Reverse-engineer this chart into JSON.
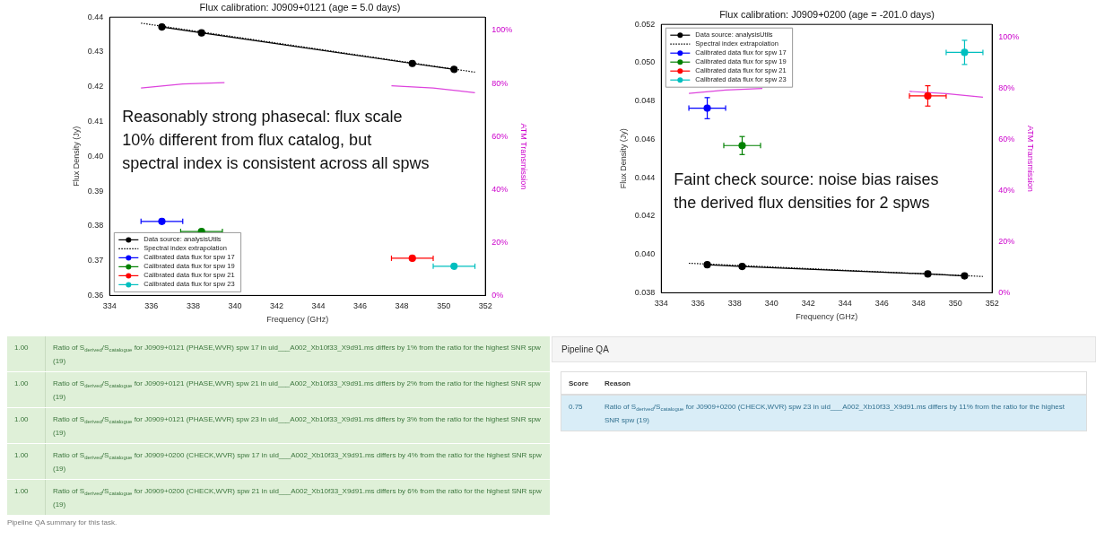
{
  "chart_data": [
    {
      "type": "line",
      "title": "Flux calibration: J0909+0121 (age = 5.0 days)",
      "xlabel": "Frequency (GHz)",
      "ylabel": "Flux Density (Jy)",
      "y2label": "ATM Transmission",
      "xlim": [
        334,
        352
      ],
      "xticks": [
        334,
        336,
        338,
        340,
        342,
        344,
        346,
        348,
        350,
        352
      ],
      "ylim": [
        0.36,
        0.44
      ],
      "yticks": [
        0.36,
        0.37,
        0.38,
        0.39,
        {
          "value": 0.4,
          "label": "0.40"
        },
        0.41,
        0.42,
        0.43,
        0.44
      ],
      "y2lim": [
        0,
        105
      ],
      "y2ticks": [
        {
          "value": 0,
          "label": "0%"
        },
        {
          "value": 20,
          "label": "20%"
        },
        {
          "value": 40,
          "label": "40%"
        },
        {
          "value": 60,
          "label": "60%"
        },
        {
          "value": 80,
          "label": "80%"
        },
        {
          "value": 100,
          "label": "100%"
        }
      ],
      "legend": "bottom left",
      "annotations": [
        "Reasonably strong phasecal: flux scale\n10% different from flux catalog, but\nspectral index is consistent across all spws"
      ],
      "series": [
        {
          "name": "Data source: analysisUtils",
          "type": "line",
          "color": "#000000",
          "marker": "circle",
          "x": [
            336.5,
            338.4,
            348.5,
            350.5
          ],
          "values": [
            0.4372,
            0.4355,
            0.4267,
            0.425
          ]
        },
        {
          "name": "Spectral index extrapolation",
          "type": "line",
          "color": "#000000",
          "marker": "none",
          "line_style": "dotted",
          "x": [
            335.5,
            351.5
          ],
          "values": [
            0.4383,
            0.4242
          ]
        },
        {
          "name": "Calibrated data flux for spw 17",
          "type": "scatter",
          "color": "#0000ff",
          "marker": "circle",
          "x": [
            336.5
          ],
          "values": [
            0.3813
          ],
          "xerrors": [
            1
          ]
        },
        {
          "name": "Calibrated data flux for spw 19",
          "type": "scatter",
          "color": "#008000",
          "marker": "circle",
          "x": [
            338.4
          ],
          "values": [
            0.3784
          ],
          "xerrors": [
            1
          ]
        },
        {
          "name": "Calibrated data flux for spw 21",
          "type": "scatter",
          "color": "#ff0000",
          "marker": "circle",
          "x": [
            348.5
          ],
          "values": [
            0.3707
          ],
          "xerrors": [
            1
          ]
        },
        {
          "name": "Calibrated data flux for spw 23",
          "type": "scatter",
          "color": "#00bfbf",
          "marker": "circle",
          "x": [
            350.5
          ],
          "values": [
            0.3684
          ],
          "xerrors": [
            1
          ]
        },
        {
          "type": "line",
          "axis": "y2",
          "color": "#dd44dd",
          "marker": "none",
          "x": [
            335.5,
            337.5,
            339.5,
            343.5,
            347.5,
            349.5,
            351.5
          ],
          "values": [
            78.3,
            79.8,
            80.3,
            null,
            79.1,
            78.3,
            76.5
          ]
        }
      ]
    },
    {
      "type": "line",
      "title": "Flux calibration: J0909+0200 (age = -201.0 days)",
      "xlabel": "Frequency (GHz)",
      "ylabel": "Flux Density (Jy)",
      "y2label": "ATM Transmission",
      "xlim": [
        334,
        352
      ],
      "xticks": [
        334,
        336,
        338,
        340,
        342,
        344,
        346,
        348,
        350,
        352
      ],
      "ylim": [
        0.038,
        0.052
      ],
      "yticks": [
        0.038,
        {
          "value": 0.04,
          "label": "0.040"
        },
        0.042,
        0.044,
        0.046,
        0.048,
        {
          "value": 0.05,
          "label": "0.050"
        },
        0.052
      ],
      "y2lim": [
        0,
        105
      ],
      "y2ticks": [
        {
          "value": 0,
          "label": "0%"
        },
        {
          "value": 20,
          "label": "20%"
        },
        {
          "value": 40,
          "label": "40%"
        },
        {
          "value": 60,
          "label": "60%"
        },
        {
          "value": 80,
          "label": "80%"
        },
        {
          "value": 100,
          "label": "100%"
        }
      ],
      "legend": "top left",
      "annotations": [
        "Faint check source: noise bias raises\nthe derived flux densities for 2 spws"
      ],
      "series": [
        {
          "name": "Data source: analysisUtils",
          "type": "line",
          "color": "#000000",
          "marker": "circle",
          "x": [
            336.5,
            338.4,
            348.5,
            350.5
          ],
          "values": [
            0.03946,
            0.03937,
            0.03898,
            0.03888
          ]
        },
        {
          "name": "Spectral index extrapolation",
          "type": "line",
          "color": "#000000",
          "marker": "none",
          "line_style": "dotted",
          "x": [
            335.5,
            351.5
          ],
          "values": [
            0.03954,
            0.03885
          ]
        },
        {
          "name": "Calibrated data flux for spw 17",
          "type": "scatter",
          "color": "#0000ff",
          "marker": "circle",
          "x": [
            336.5
          ],
          "values": [
            0.04763
          ],
          "errors": [
            0.00055
          ],
          "xerrors": [
            1
          ]
        },
        {
          "name": "Calibrated data flux for spw 19",
          "type": "scatter",
          "color": "#008000",
          "marker": "circle",
          "x": [
            338.4
          ],
          "values": [
            0.04568
          ],
          "errors": [
            0.00047
          ],
          "xerrors": [
            1
          ]
        },
        {
          "name": "Calibrated data flux for spw 21",
          "type": "scatter",
          "color": "#ff0000",
          "marker": "circle",
          "x": [
            348.5
          ],
          "values": [
            0.04827
          ],
          "errors": [
            0.00053
          ],
          "xerrors": [
            1
          ]
        },
        {
          "name": "Calibrated data flux for spw 23",
          "type": "scatter",
          "color": "#00bfbf",
          "marker": "circle",
          "x": [
            350.5
          ],
          "values": [
            0.05054
          ],
          "errors": [
            0.00063
          ],
          "xerrors": [
            1
          ]
        },
        {
          "type": "line",
          "axis": "y2",
          "color": "#dd44dd",
          "marker": "none",
          "x": [
            335.5,
            337.5,
            339.5,
            343.5,
            347.5,
            349.5,
            351.5
          ],
          "values": [
            78.0,
            79.3,
            79.9,
            null,
            78.8,
            77.9,
            76.5
          ]
        }
      ]
    },
    {
      "type": "other",
      "annotations": [
        "1.00",
        "Ratio of S$_{derived}$/S$_{catalogue}$ for J0909+0121 (PHASE,WVR) spw 17 in uid___A002_Xb10f33_X9d91.ms differs by 1% from the ratio for the highest SNR spw (19)",
        "1.00",
        "Ratio of S$_{derived}$/S$_{catalogue}$ for J0909+0121 (PHASE,WVR) spw 21 in uid___A002_Xb10f33_X9d91.ms differs by 2% from the ratio for the highest SNR spw (19)",
        "1.00",
        "Ratio of S$_{derived}$/S$_{catalogue}$ for J0909+0121 (PHASE,WVR) spw 23 in uid___A002_Xb10f33_X9d91.ms differs by 3% from the ratio for the highest SNR spw (19)",
        "1.00",
        "Ratio of S$_{derived}$/S$_{catalogue}$ for J0909+0200 (CHECK,WVR) spw 17 in uid___A002_Xb10f33_X9d91.ms differs by 4% from the ratio for the highest SNR spw (19)",
        "1.00",
        "Ratio of S$_{derived}$/S$_{catalogue}$ for J0909+0200 (CHECK,WVR) spw 21 in uid___A002_Xb10f33_X9d91.ms differs by 6% from the ratio for the highest SNR spw (19)",
        "Pipeline QA summary for this task."
      ]
    },
    {
      "type": "other",
      "title": "Pipeline QA",
      "annotations": [
        "Score",
        "Reason",
        "0.75",
        "Ratio of S$_{derived}$/S$_{catalogue}$ for J0909+0200 (CHECK,WVR) spw 23 in uid___A002_Xb10f33_X9d91.ms differs by 11% from the ratio for the highest SNR spw (19)"
      ]
    }
  ]
}
